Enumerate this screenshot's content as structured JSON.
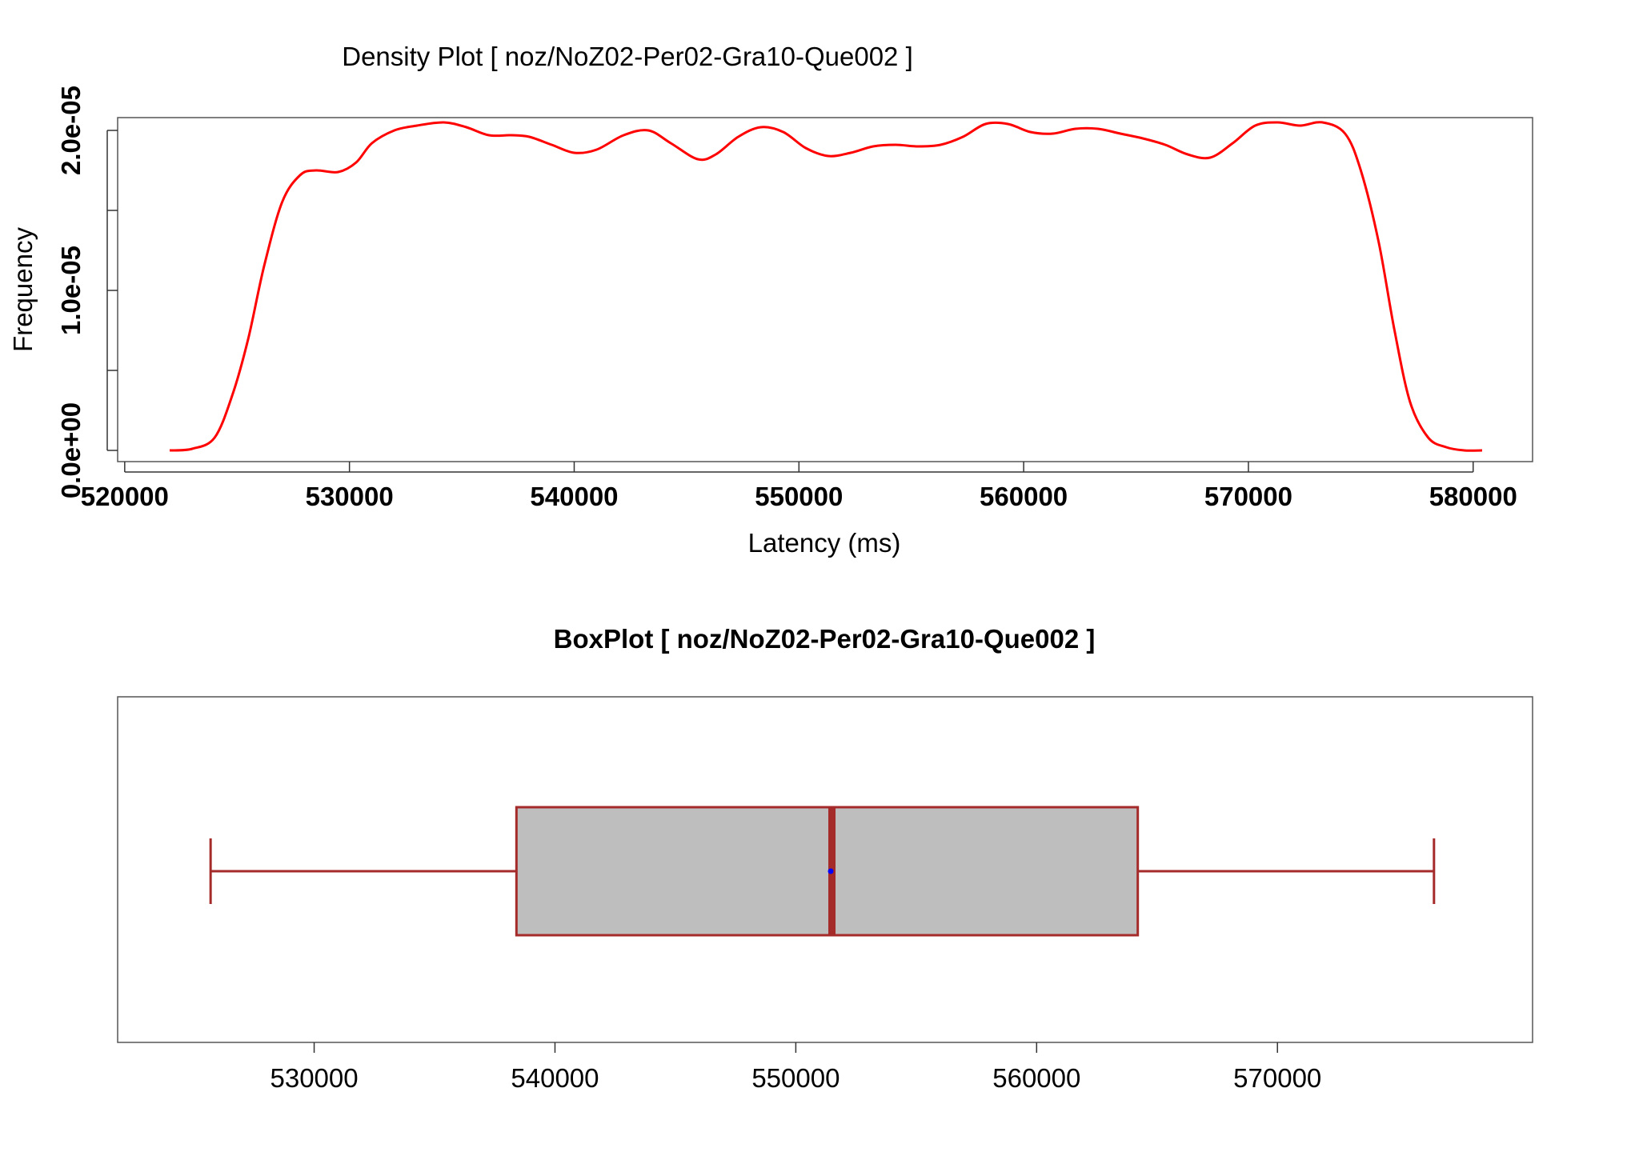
{
  "chart_data": [
    {
      "type": "line",
      "title": "Density Plot [ noz/NoZ02-Per02-Gra10-Que002 ]",
      "xlabel": "Latency (ms)",
      "ylabel": "Frequency",
      "xlim": [
        522000,
        580400
      ],
      "ylim": [
        0,
        2.05e-05
      ],
      "x_ticks": [
        520000,
        530000,
        540000,
        550000,
        560000,
        570000,
        580000
      ],
      "x_tick_labels": [
        "520000",
        "530000",
        "540000",
        "550000",
        "560000",
        "570000",
        "580000"
      ],
      "y_ticks": [
        0,
        5e-06,
        1e-05,
        1.5e-05,
        2e-05
      ],
      "y_tick_labels": [
        "0.0e+00",
        "",
        "1.0e-05",
        "",
        "2.0e-05"
      ],
      "grid": false,
      "color": "#ff0000",
      "series": [
        {
          "x": [
            522000,
            523000,
            524000,
            524800,
            525500,
            526200,
            527000,
            527800,
            528500,
            529500,
            530300,
            531000,
            532000,
            533000,
            534200,
            535200,
            536200,
            537200,
            538000,
            539000,
            540000,
            541000,
            542200,
            543300,
            544300,
            545500,
            546300,
            547300,
            548300,
            549300,
            550300,
            551300,
            552300,
            553300,
            554300,
            555300,
            556300,
            557300,
            558300,
            559300,
            560300,
            561300,
            562300,
            563300,
            564300,
            565300,
            566300,
            567300,
            568300,
            569300,
            570300,
            571300,
            572300,
            573300,
            574300,
            575000,
            575800,
            576500,
            577200,
            578000,
            578800,
            579600,
            580400
          ],
          "y": [
            0.0,
            1e-07,
            8e-07,
            3.5e-06,
            7e-06,
            1.15e-05,
            1.55e-05,
            1.72e-05,
            1.75e-05,
            1.74e-05,
            1.8e-05,
            1.92e-05,
            2e-05,
            2.03e-05,
            2.05e-05,
            2.02e-05,
            1.97e-05,
            1.97e-05,
            1.96e-05,
            1.91e-05,
            1.86e-05,
            1.88e-05,
            1.97e-05,
            2e-05,
            1.92e-05,
            1.82e-05,
            1.85e-05,
            1.96e-05,
            2.02e-05,
            1.99e-05,
            1.89e-05,
            1.84e-05,
            1.86e-05,
            1.9e-05,
            1.91e-05,
            1.9e-05,
            1.91e-05,
            1.96e-05,
            2.04e-05,
            2.04e-05,
            1.99e-05,
            1.98e-05,
            2.01e-05,
            2.01e-05,
            1.98e-05,
            1.95e-05,
            1.91e-05,
            1.85e-05,
            1.83e-05,
            1.92e-05,
            2.03e-05,
            2.05e-05,
            2.03e-05,
            2.05e-05,
            1.98e-05,
            1.75e-05,
            1.3e-05,
            7.5e-06,
            3e-06,
            8e-07,
            2e-07,
            0.0,
            0.0
          ]
        }
      ]
    },
    {
      "type": "box",
      "title": "BoxPlot [ noz/NoZ02-Per02-Gra10-Que002 ]",
      "xlim": [
        524000,
        578500
      ],
      "x_ticks": [
        530000,
        540000,
        550000,
        560000,
        570000
      ],
      "x_tick_labels": [
        "530000",
        "540000",
        "550000",
        "560000",
        "570000"
      ],
      "whisker_low": 525700,
      "q1": 538400,
      "median": 551500,
      "mean": 551450,
      "q3": 564200,
      "whisker_high": 576500,
      "box_fill": "#bebebe",
      "line_color": "#a52a2a",
      "mean_color": "#0000ff"
    }
  ]
}
